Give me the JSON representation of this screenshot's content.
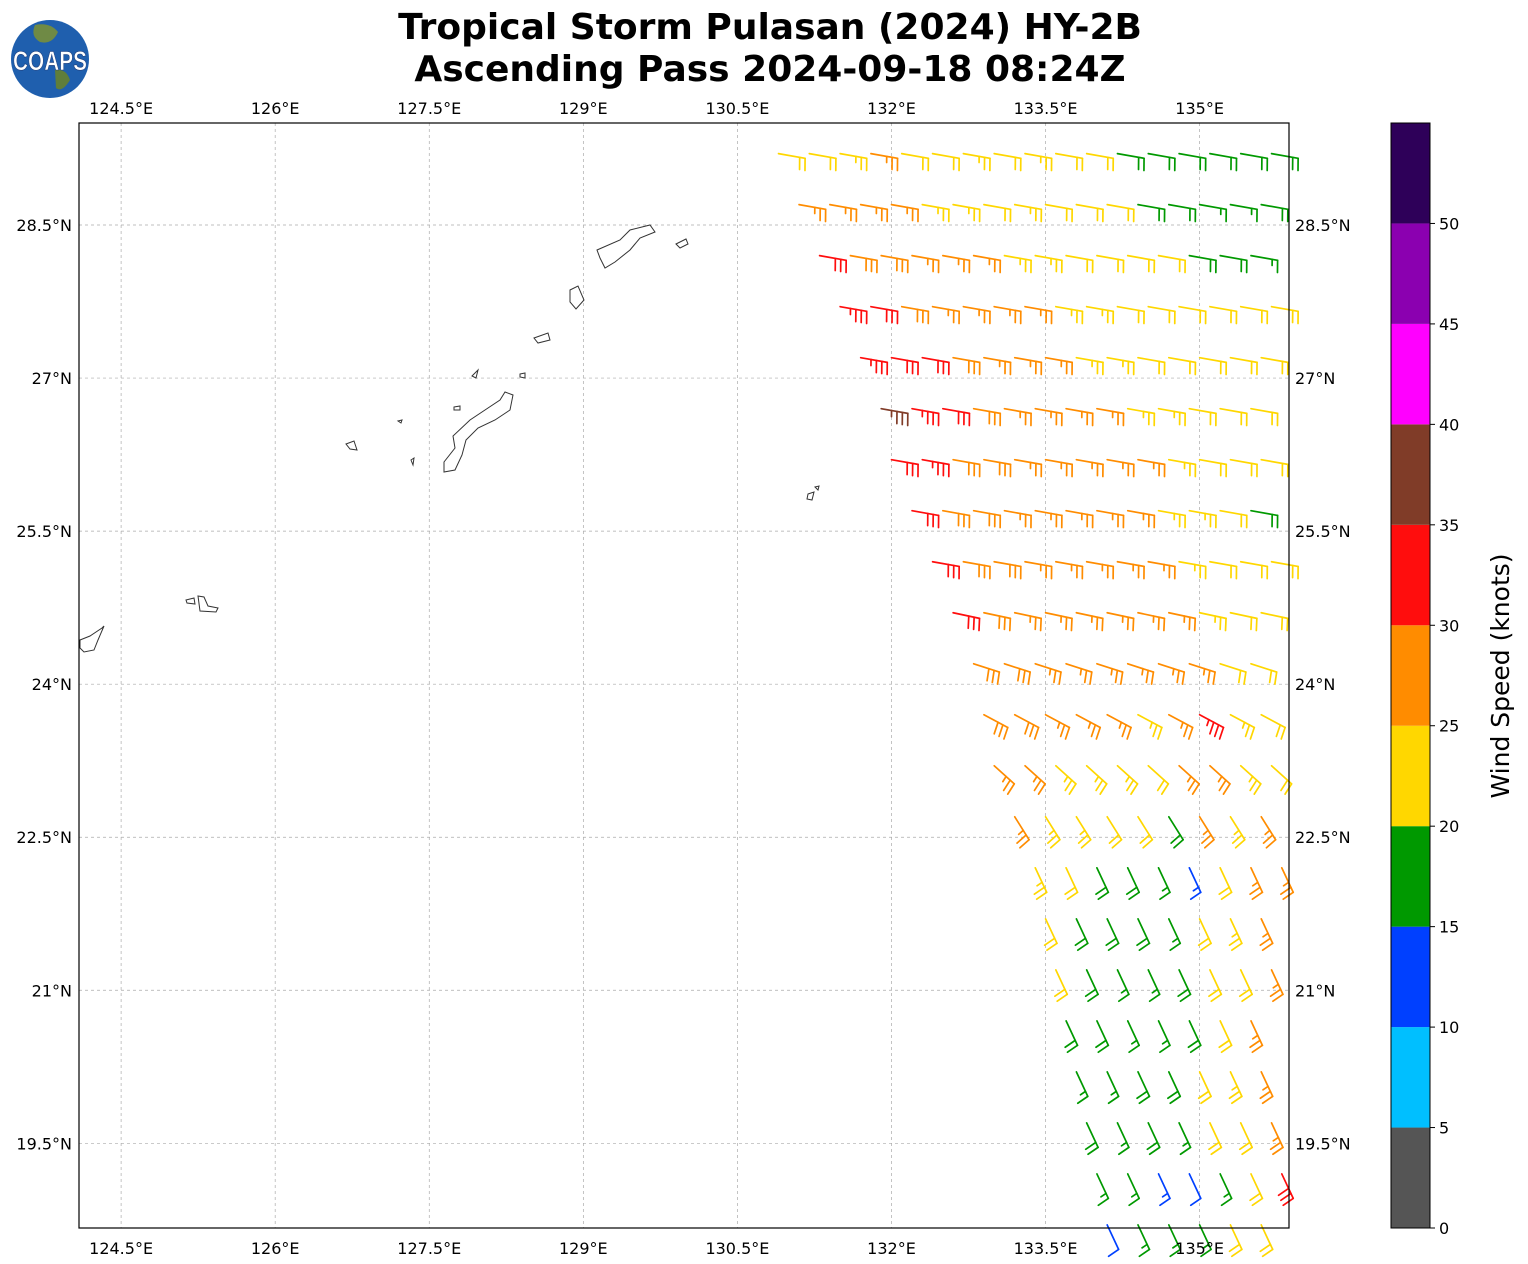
{
  "title": {
    "line1": "Tropical Storm Pulasan (2024) HY-2B",
    "line2": "Ascending Pass 2024-09-18 08:24Z"
  },
  "logo": {
    "text": "COAPS"
  },
  "chart_data": {
    "type": "wind-barb-map",
    "lon_ticks": [
      124.5,
      126,
      127.5,
      129,
      130.5,
      132,
      133.5,
      135
    ],
    "lon_labels": [
      "124.5°E",
      "126°E",
      "127.5°E",
      "129°E",
      "130.5°E",
      "132°E",
      "133.5°E",
      "135°E"
    ],
    "lat_ticks": [
      28.5,
      27,
      25.5,
      24,
      22.5,
      21,
      19.5
    ],
    "lat_labels": [
      "28.5°N",
      "27°N",
      "25.5°N",
      "24°N",
      "22.5°N",
      "21°N",
      "19.5°N"
    ],
    "lon_range": [
      124.09,
      135.87
    ],
    "lat_range": [
      18.67,
      29.5
    ],
    "grid": true,
    "colorbar": {
      "label": "Wind Speed (knots)",
      "bounds": [
        0,
        5,
        10,
        15,
        20,
        25,
        30,
        35,
        40,
        45,
        50,
        55
      ],
      "tick_values": [
        0,
        5,
        10,
        15,
        20,
        25,
        30,
        35,
        40,
        45,
        50
      ],
      "tick_labels": [
        "0",
        "5",
        "10",
        "15",
        "20",
        "25",
        "30",
        "35",
        "40",
        "45",
        "50"
      ],
      "colors": [
        "#555555",
        "#00bfff",
        "#0040ff",
        "#009900",
        "#ffd700",
        "#ff8c00",
        "#ff0d0d",
        "#803c28",
        "#ff00ff",
        "#8b00b0",
        "#2e0059"
      ]
    },
    "lon_step": 0.3,
    "wind_rows": [
      {
        "lat": 29.2,
        "lon0": 130.9,
        "dir": 100,
        "speeds": [
          22,
          22,
          24,
          26,
          22,
          22,
          23,
          22,
          23,
          22,
          21,
          19,
          18,
          18,
          19,
          18,
          18
        ]
      },
      {
        "lat": 28.7,
        "lon0": 131.1,
        "dir": 100,
        "speeds": [
          27,
          27,
          26,
          27,
          24,
          23,
          22,
          23,
          22,
          22,
          21,
          18,
          18,
          17,
          17,
          18
        ]
      },
      {
        "lat": 28.2,
        "lon0": 131.3,
        "dir": 100,
        "speeds": [
          32,
          29,
          28,
          27,
          27,
          26,
          24,
          23,
          22,
          22,
          22,
          21,
          19,
          18,
          17
        ]
      },
      {
        "lat": 27.7,
        "lon0": 131.5,
        "dir": 100,
        "speeds": [
          33,
          32,
          28,
          27,
          27,
          26,
          26,
          24,
          23,
          22,
          22,
          22,
          22,
          21,
          22
        ]
      },
      {
        "lat": 27.2,
        "lon0": 131.7,
        "dir": 100,
        "speeds": [
          33,
          32,
          31,
          28,
          27,
          26,
          26,
          24,
          23,
          22,
          22,
          22,
          22,
          21
        ]
      },
      {
        "lat": 26.7,
        "lon0": 131.9,
        "dir": 100,
        "speeds": [
          36,
          33,
          32,
          28,
          27,
          27,
          26,
          26,
          24,
          23,
          22,
          22,
          22
        ]
      },
      {
        "lat": 26.2,
        "lon0": 132.0,
        "dir": 100,
        "speeds": [
          32,
          33,
          28,
          28,
          27,
          27,
          26,
          26,
          25,
          23,
          22,
          22,
          22
        ]
      },
      {
        "lat": 25.7,
        "lon0": 132.2,
        "dir": 100,
        "speeds": [
          32,
          28,
          28,
          27,
          27,
          26,
          26,
          26,
          24,
          23,
          22,
          19
        ]
      },
      {
        "lat": 25.2,
        "lon0": 132.4,
        "dir": 100,
        "speeds": [
          32,
          28,
          28,
          27,
          27,
          26,
          26,
          26,
          23,
          22,
          22,
          22
        ]
      },
      {
        "lat": 24.7,
        "lon0": 132.6,
        "dir": 102,
        "speeds": [
          31,
          28,
          27,
          27,
          26,
          26,
          26,
          26,
          24,
          22,
          22
        ]
      },
      {
        "lat": 24.2,
        "lon0": 132.8,
        "dir": 108,
        "speeds": [
          28,
          28,
          27,
          27,
          26,
          26,
          26,
          27,
          22,
          22
        ]
      },
      {
        "lat": 23.7,
        "lon0": 132.9,
        "dir": 118,
        "speeds": [
          28,
          28,
          27,
          27,
          26,
          24,
          27,
          33,
          23,
          22
        ]
      },
      {
        "lat": 23.2,
        "lon0": 133.0,
        "dir": 132,
        "speeds": [
          27,
          27,
          24,
          23,
          23,
          22,
          27,
          27,
          23,
          22
        ]
      },
      {
        "lat": 22.7,
        "lon0": 133.2,
        "dir": 148,
        "speeds": [
          27,
          24,
          23,
          22,
          22,
          19,
          26,
          23,
          27
        ]
      },
      {
        "lat": 22.2,
        "lon0": 133.4,
        "dir": 155,
        "speeds": [
          23,
          22,
          18,
          18,
          17,
          13,
          22,
          27,
          27
        ]
      },
      {
        "lat": 21.7,
        "lon0": 133.5,
        "dir": 155,
        "speeds": [
          22,
          18,
          18,
          18,
          17,
          22,
          23,
          27
        ]
      },
      {
        "lat": 21.2,
        "lon0": 133.6,
        "dir": 155,
        "speeds": [
          22,
          18,
          17,
          17,
          18,
          22,
          22,
          27
        ]
      },
      {
        "lat": 20.7,
        "lon0": 133.7,
        "dir": 155,
        "speeds": [
          18,
          18,
          17,
          17,
          18,
          22,
          27
        ]
      },
      {
        "lat": 20.2,
        "lon0": 133.8,
        "dir": 155,
        "speeds": [
          17,
          17,
          18,
          18,
          22,
          23,
          27
        ]
      },
      {
        "lat": 19.7,
        "lon0": 133.9,
        "dir": 155,
        "speeds": [
          18,
          17,
          18,
          17,
          22,
          22,
          27
        ]
      },
      {
        "lat": 19.2,
        "lon0": 134.0,
        "dir": 155,
        "speeds": [
          17,
          17,
          13,
          12,
          17,
          22,
          31
        ]
      },
      {
        "lat": 18.7,
        "lon0": 134.1,
        "dir": 155,
        "speeds": [
          12,
          17,
          17,
          17,
          22,
          22
        ]
      }
    ]
  }
}
